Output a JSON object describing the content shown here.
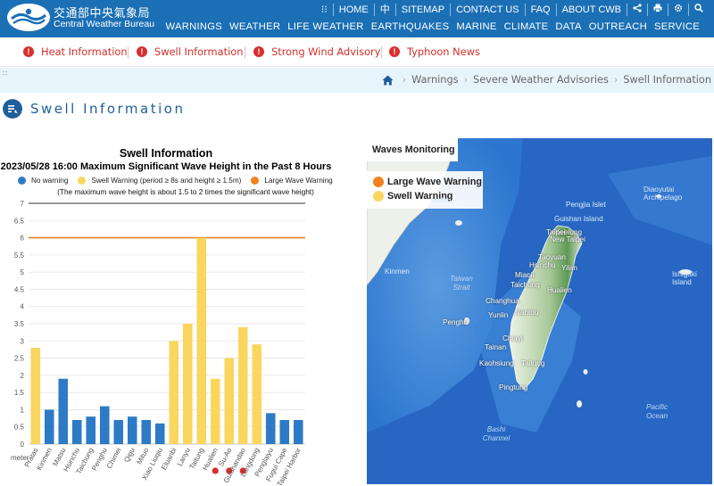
{
  "header": {
    "logo_cn": "交通部中央氣象局",
    "logo_en": "Central Weather Bureau",
    "top_links": [
      "HOME",
      "中",
      "SITEMAP",
      "CONTACT US",
      "FAQ",
      "ABOUT CWB"
    ],
    "main_nav": [
      "WARNINGS",
      "WEATHER",
      "LIFE WEATHER",
      "EARTHQUAKES",
      "MARINE",
      "CLIMATE",
      "DATA",
      "OUTREACH",
      "SERVICE"
    ]
  },
  "alerts": [
    {
      "label": "Heat Information",
      "mark": "!"
    },
    {
      "label": "Swell Information",
      "mark": "!"
    },
    {
      "label": "Strong Wind Advisory",
      "mark": "!"
    },
    {
      "label": "Typhoon News",
      "mark": "!"
    }
  ],
  "breadcrumb": {
    "handle": "∷",
    "items": [
      "Warnings",
      "Severe Weather Advisories",
      "Swell Information"
    ]
  },
  "page_title": "Swell Information",
  "colors": {
    "header_bg": "#1b6fb5",
    "no_warning": "#2d7bc6",
    "swell_warning": "#fad65f",
    "large_wave_warning": "#f4811f",
    "alert_red": "#d72f2f"
  },
  "chart_data": {
    "type": "bar",
    "title": "Swell Information",
    "subtitle": "2023/05/28 16:00 Maximum Significant Wave Height in the Past 8 Hours",
    "note": "(The maximum wave height is about 1.5 to 2 times the significant wave height)",
    "legend": [
      "No warning",
      "Swell Warning (period ≥ 8s and height ≥ 1.5m)",
      "Large Wave Warning"
    ],
    "ylabel": "meter",
    "ylim": [
      0,
      7
    ],
    "yticks": [
      0,
      0.5,
      1,
      1.5,
      2,
      2.5,
      3,
      3.5,
      4,
      4.5,
      5,
      5.5,
      6,
      6.5,
      7
    ],
    "threshold_line": 6,
    "categories": [
      "Pratas",
      "Kinmen",
      "Matsu",
      "Hsinchu",
      "Taichung",
      "Penghu",
      "Chimei",
      "Qigu",
      "Mituo",
      "Xiao Liuqiu",
      "Eluanbi",
      "Lanyu",
      "Taitung",
      "Hualien",
      "Su-Ao",
      "Guishandao",
      "Longdong",
      "Penglaiyu",
      "Fugui Cape",
      "Taipei Harbor"
    ],
    "values": [
      2.8,
      1.0,
      1.9,
      0.7,
      0.8,
      1.1,
      0.7,
      0.8,
      0.7,
      0.6,
      3.0,
      3.5,
      6.0,
      1.9,
      2.5,
      3.4,
      2.9,
      0.9,
      0.7,
      0.7
    ],
    "status": [
      "swell",
      "none",
      "none",
      "none",
      "none",
      "none",
      "none",
      "none",
      "none",
      "none",
      "swell",
      "swell",
      "swell",
      "swell",
      "swell",
      "swell",
      "swell",
      "none",
      "none",
      "none"
    ],
    "red_markers": [
      "Hualien",
      "Su-Ao",
      "Guishandao"
    ]
  },
  "map": {
    "title": "Waves Monitoring",
    "legend": [
      {
        "label": "Large Wave Warning",
        "color": "#f4811f"
      },
      {
        "label": "Swell Warning",
        "color": "#fad65f"
      }
    ],
    "places": [
      "Keelung",
      "Taipei",
      "New Taipei",
      "Taoyuan",
      "Hsinchu",
      "Miaoli",
      "Yilan",
      "Taichung",
      "Hualien",
      "Changhua",
      "Nantou",
      "Yunlin",
      "Chiayi",
      "Tainan",
      "Kaohsiung",
      "Taitung",
      "Pingtung",
      "Penghu",
      "Kinmen",
      "Matsu",
      "Pengjia Islet",
      "Diaoyutai Archipelago",
      "Ishigaki Island",
      "Guishan Island"
    ],
    "seas": [
      "Taiwan Strait",
      "Bashi Channel",
      "Pacific Ocean"
    ]
  }
}
